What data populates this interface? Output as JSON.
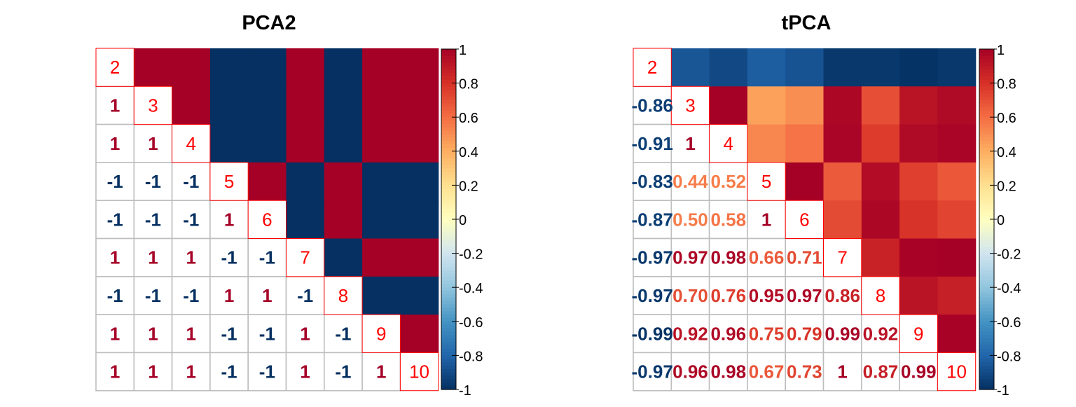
{
  "chart_data": [
    {
      "type": "heatmap",
      "title": "PCA2",
      "labels": [
        "2",
        "3",
        "4",
        "5",
        "6",
        "7",
        "8",
        "9",
        "10"
      ],
      "matrix": [
        [
          1,
          1,
          1,
          -1,
          -1,
          1,
          -1,
          1,
          1
        ],
        [
          1,
          1,
          1,
          -1,
          -1,
          1,
          -1,
          1,
          1
        ],
        [
          1,
          1,
          1,
          -1,
          -1,
          1,
          -1,
          1,
          1
        ],
        [
          -1,
          -1,
          -1,
          1,
          1,
          -1,
          1,
          -1,
          -1
        ],
        [
          -1,
          -1,
          -1,
          1,
          1,
          -1,
          1,
          -1,
          -1
        ],
        [
          1,
          1,
          1,
          -1,
          -1,
          1,
          -1,
          1,
          1
        ],
        [
          -1,
          -1,
          -1,
          1,
          1,
          -1,
          1,
          -1,
          -1
        ],
        [
          1,
          1,
          1,
          -1,
          -1,
          1,
          -1,
          1,
          1
        ],
        [
          1,
          1,
          1,
          -1,
          -1,
          1,
          -1,
          1,
          1
        ]
      ],
      "lower_labels": [
        [],
        [
          "1"
        ],
        [
          "1",
          "1"
        ],
        [
          "-1",
          "-1",
          "-1"
        ],
        [
          "-1",
          "-1",
          "-1",
          "1"
        ],
        [
          "1",
          "1",
          "1",
          "-1",
          "-1"
        ],
        [
          "-1",
          "-1",
          "-1",
          "1",
          "1",
          "-1"
        ],
        [
          "1",
          "1",
          "1",
          "-1",
          "-1",
          "1",
          "-1"
        ],
        [
          "1",
          "1",
          "1",
          "-1",
          "-1",
          "1",
          "-1",
          "1"
        ]
      ],
      "colorbar_ticks": [
        "1",
        "0.8",
        "0.6",
        "0.4",
        "0.2",
        "0",
        "-0.2",
        "-0.4",
        "-0.6",
        "-0.8",
        "-1"
      ],
      "value_range": [
        -1,
        1
      ]
    },
    {
      "type": "heatmap",
      "title": "tPCA",
      "labels": [
        "2",
        "3",
        "4",
        "5",
        "6",
        "7",
        "8",
        "9",
        "10"
      ],
      "matrix": [
        [
          1,
          -0.86,
          -0.91,
          -0.83,
          -0.87,
          -0.97,
          -0.97,
          -0.99,
          -0.97
        ],
        [
          -0.86,
          1,
          1,
          0.44,
          0.5,
          0.97,
          0.7,
          0.92,
          0.96
        ],
        [
          -0.91,
          1,
          1,
          0.52,
          0.58,
          0.98,
          0.76,
          0.96,
          0.98
        ],
        [
          -0.83,
          0.44,
          0.52,
          1,
          1,
          0.66,
          0.95,
          0.75,
          0.67
        ],
        [
          -0.87,
          0.5,
          0.58,
          1,
          1,
          0.71,
          0.97,
          0.79,
          0.73
        ],
        [
          -0.97,
          0.97,
          0.98,
          0.66,
          0.71,
          1,
          0.86,
          0.99,
          1
        ],
        [
          -0.97,
          0.7,
          0.76,
          0.95,
          0.97,
          0.86,
          1,
          0.92,
          0.87
        ],
        [
          -0.99,
          0.92,
          0.96,
          0.75,
          0.79,
          0.99,
          0.92,
          1,
          0.99
        ],
        [
          -0.97,
          0.96,
          0.98,
          0.67,
          0.73,
          1,
          0.87,
          0.99,
          1
        ]
      ],
      "lower_labels": [
        [],
        [
          "-0.86"
        ],
        [
          "-0.91",
          "1"
        ],
        [
          "-0.83",
          "0.44",
          "0.52"
        ],
        [
          "-0.87",
          "0.50",
          "0.58",
          "1"
        ],
        [
          "-0.97",
          "0.97",
          "0.98",
          "0.66",
          "0.71"
        ],
        [
          "-0.97",
          "0.70",
          "0.76",
          "0.95",
          "0.97",
          "0.86"
        ],
        [
          "-0.99",
          "0.92",
          "0.96",
          "0.75",
          "0.79",
          "0.99",
          "0.92"
        ],
        [
          "-0.97",
          "0.96",
          "0.98",
          "0.67",
          "0.73",
          "1",
          "0.87",
          "0.99"
        ]
      ],
      "colorbar_ticks": [
        "1",
        "0.8",
        "0.6",
        "0.4",
        "0.2",
        "0",
        "-0.2",
        "-0.4",
        "-0.6",
        "-0.8",
        "-1"
      ],
      "value_range": [
        -1,
        1
      ]
    }
  ],
  "colors": {
    "palette_low_to_high": [
      "#053061",
      "#2166AC",
      "#4393C3",
      "#92C5DE",
      "#D1E5F0",
      "#FFFFBF",
      "#FEE090",
      "#FDAE61",
      "#F46D43",
      "#D73027",
      "#A50026"
    ],
    "diagonal_label": "#FF0000",
    "grid": "#BEBEBE",
    "diagonal_border": "#FF0000",
    "axis": "#000000"
  }
}
